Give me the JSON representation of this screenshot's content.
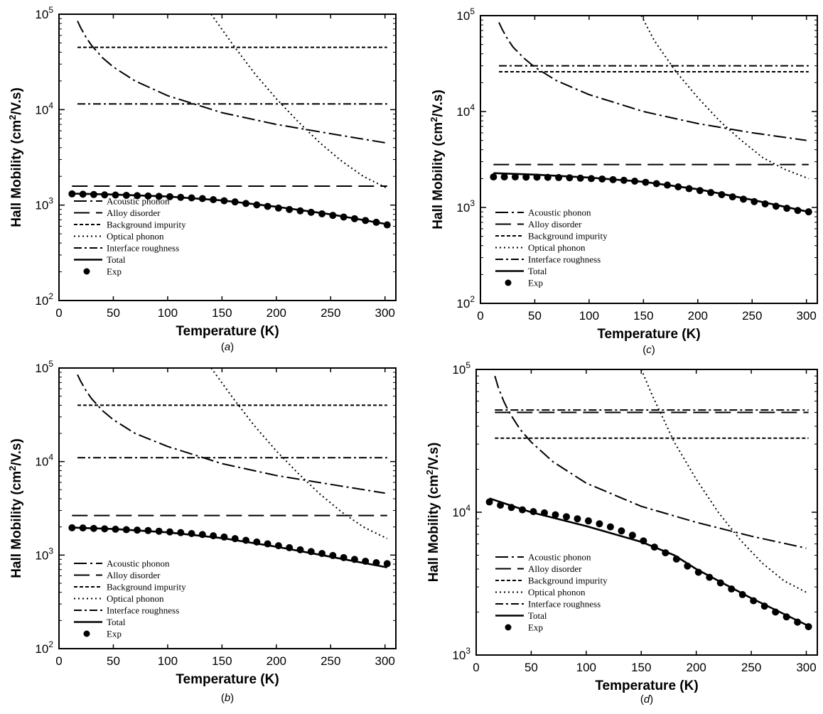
{
  "chart_data": [
    {
      "panel": "a",
      "type": "line",
      "xlabel": "Temperature (K)",
      "ylabel": "Hall Mobility (cm²/V.s)",
      "xlim": [
        0,
        310
      ],
      "ylim": [
        100,
        100000
      ],
      "yscale": "log",
      "xticks": [
        0,
        50,
        100,
        150,
        200,
        250,
        300
      ],
      "ytick_exponents": [
        2,
        3,
        4,
        5
      ],
      "legend_position": "lower-left",
      "series": [
        {
          "name": "Acoustic phonon",
          "style": "dashdot-long",
          "x": [
            17,
            20,
            25,
            30,
            40,
            50,
            70,
            100,
            150,
            200,
            250,
            300
          ],
          "y": [
            85000,
            72000,
            57000,
            47000,
            35000,
            28000,
            20000,
            14000,
            9300,
            7000,
            5600,
            4500
          ]
        },
        {
          "name": "Alloy disorder",
          "style": "dash-long",
          "x": [
            12,
            302
          ],
          "y": [
            1580,
            1580
          ]
        },
        {
          "name": "Background impurity",
          "style": "dash-short",
          "x": [
            17,
            302
          ],
          "y": [
            45000,
            45000
          ]
        },
        {
          "name": "Optical phonon",
          "style": "dotted",
          "x": [
            140,
            160,
            180,
            200,
            220,
            240,
            260,
            280,
            302
          ],
          "y": [
            100000,
            48000,
            24000,
            13000,
            7500,
            4500,
            2900,
            2000,
            1500
          ]
        },
        {
          "name": "Interface roughness",
          "style": "dashdot-medium",
          "x": [
            17,
            302
          ],
          "y": [
            11500,
            11500
          ]
        },
        {
          "name": "Total",
          "style": "solid",
          "x": [
            12,
            50,
            100,
            150,
            200,
            250,
            302
          ],
          "y": [
            1320,
            1290,
            1230,
            1120,
            960,
            800,
            630
          ]
        },
        {
          "name": "Exp",
          "style": "markers",
          "x": [
            12,
            22,
            32,
            42,
            52,
            62,
            72,
            82,
            92,
            102,
            112,
            122,
            132,
            142,
            152,
            162,
            172,
            182,
            192,
            202,
            212,
            222,
            232,
            242,
            252,
            262,
            272,
            282,
            292,
            302
          ],
          "y": [
            1310,
            1300,
            1290,
            1280,
            1275,
            1265,
            1255,
            1245,
            1235,
            1225,
            1205,
            1190,
            1170,
            1140,
            1110,
            1080,
            1040,
            1005,
            970,
            930,
            900,
            870,
            840,
            810,
            780,
            750,
            720,
            690,
            660,
            620
          ]
        }
      ]
    },
    {
      "panel": "c",
      "type": "line",
      "xlabel": "Temperature (K)",
      "ylabel": "Hall Mobility (cm²/V.s)",
      "xlim": [
        0,
        310
      ],
      "ylim": [
        100,
        100000
      ],
      "yscale": "log",
      "xticks": [
        0,
        50,
        100,
        150,
        200,
        250,
        300
      ],
      "ytick_exponents": [
        2,
        3,
        4,
        5
      ],
      "legend_position": "lower-left",
      "series": [
        {
          "name": "Acoustic phonon",
          "style": "dashdot-long",
          "x": [
            17,
            20,
            25,
            30,
            40,
            50,
            70,
            100,
            150,
            200,
            250,
            300
          ],
          "y": [
            85000,
            72000,
            57000,
            47000,
            36000,
            29000,
            21000,
            15000,
            10000,
            7500,
            6000,
            5000
          ]
        },
        {
          "name": "Alloy disorder",
          "style": "dash-long",
          "x": [
            12,
            302
          ],
          "y": [
            2800,
            2800
          ]
        },
        {
          "name": "Background impurity",
          "style": "dash-short",
          "x": [
            17,
            302
          ],
          "y": [
            26000,
            26000
          ]
        },
        {
          "name": "Optical phonon",
          "style": "dotted",
          "x": [
            148,
            160,
            180,
            200,
            220,
            240,
            260,
            280,
            302
          ],
          "y": [
            100000,
            55000,
            26000,
            14000,
            8000,
            5000,
            3300,
            2500,
            2000
          ]
        },
        {
          "name": "Interface roughness",
          "style": "dashdot-medium",
          "x": [
            17,
            302
          ],
          "y": [
            30000,
            30000
          ]
        },
        {
          "name": "Total",
          "style": "solid",
          "x": [
            12,
            50,
            100,
            150,
            200,
            250,
            302
          ],
          "y": [
            2280,
            2200,
            2050,
            1850,
            1550,
            1200,
            900
          ]
        },
        {
          "name": "Exp",
          "style": "markers",
          "x": [
            12,
            22,
            32,
            42,
            52,
            62,
            72,
            82,
            92,
            102,
            112,
            122,
            132,
            142,
            152,
            162,
            172,
            182,
            192,
            202,
            212,
            222,
            232,
            242,
            252,
            262,
            272,
            282,
            292,
            302
          ],
          "y": [
            2080,
            2080,
            2080,
            2070,
            2070,
            2060,
            2050,
            2040,
            2020,
            2000,
            1980,
            1950,
            1920,
            1880,
            1830,
            1770,
            1710,
            1640,
            1570,
            1500,
            1430,
            1360,
            1290,
            1220,
            1150,
            1090,
            1030,
            980,
            930,
            900
          ]
        }
      ]
    },
    {
      "panel": "b",
      "type": "line",
      "xlabel": "Temperature (K)",
      "ylabel": "Hall Mobility (cm²/V.s)",
      "xlim": [
        0,
        310
      ],
      "ylim": [
        100,
        100000
      ],
      "yscale": "log",
      "xticks": [
        0,
        50,
        100,
        150,
        200,
        250,
        300
      ],
      "ytick_exponents": [
        2,
        3,
        4,
        5
      ],
      "legend_position": "lower-left",
      "series": [
        {
          "name": "Acoustic phonon",
          "style": "dashdot-long",
          "x": [
            17,
            20,
            25,
            30,
            40,
            50,
            70,
            100,
            150,
            200,
            250,
            300
          ],
          "y": [
            85000,
            72000,
            57000,
            47000,
            35000,
            28000,
            20000,
            14500,
            9500,
            7100,
            5700,
            4600
          ]
        },
        {
          "name": "Alloy disorder",
          "style": "dash-long",
          "x": [
            12,
            302
          ],
          "y": [
            2650,
            2650
          ]
        },
        {
          "name": "Background impurity",
          "style": "dash-short",
          "x": [
            17,
            302
          ],
          "y": [
            40000,
            40000
          ]
        },
        {
          "name": "Optical phonon",
          "style": "dotted",
          "x": [
            140,
            160,
            180,
            200,
            220,
            240,
            260,
            280,
            302
          ],
          "y": [
            100000,
            48000,
            24000,
            13000,
            7500,
            4500,
            2900,
            2000,
            1500
          ]
        },
        {
          "name": "Interface roughness",
          "style": "dashdot-medium",
          "x": [
            17,
            302
          ],
          "y": [
            11000,
            11000
          ]
        },
        {
          "name": "Total",
          "style": "solid",
          "x": [
            12,
            50,
            100,
            150,
            200,
            250,
            302
          ],
          "y": [
            1970,
            1900,
            1750,
            1520,
            1230,
            960,
            740
          ]
        },
        {
          "name": "Exp",
          "style": "markers",
          "x": [
            12,
            22,
            32,
            42,
            52,
            62,
            72,
            82,
            92,
            102,
            112,
            122,
            132,
            142,
            152,
            162,
            172,
            182,
            192,
            202,
            212,
            222,
            232,
            242,
            252,
            262,
            272,
            282,
            292,
            302
          ],
          "y": [
            1960,
            1950,
            1930,
            1910,
            1890,
            1870,
            1850,
            1830,
            1800,
            1770,
            1740,
            1700,
            1660,
            1610,
            1560,
            1500,
            1440,
            1380,
            1320,
            1260,
            1200,
            1140,
            1090,
            1040,
            990,
            940,
            900,
            860,
            830,
            810
          ]
        }
      ]
    },
    {
      "panel": "d",
      "type": "line",
      "xlabel": "Temperature (K)",
      "ylabel": "Hall Mobility (cm²/V.s)",
      "xlim": [
        0,
        310
      ],
      "ylim": [
        1000,
        100000
      ],
      "yscale": "log",
      "xticks": [
        0,
        50,
        100,
        150,
        200,
        250,
        300
      ],
      "ytick_exponents": [
        3,
        4,
        5
      ],
      "legend_position": "lower-left",
      "series": [
        {
          "name": "Acoustic phonon",
          "style": "dashdot-long",
          "x": [
            17,
            20,
            25,
            30,
            40,
            50,
            70,
            100,
            150,
            200,
            250,
            300
          ],
          "y": [
            90000,
            75000,
            60000,
            50000,
            38000,
            31000,
            22500,
            16000,
            11000,
            8500,
            6800,
            5600
          ]
        },
        {
          "name": "Alloy disorder",
          "style": "dash-long",
          "x": [
            17,
            302
          ],
          "y": [
            50000,
            50000
          ]
        },
        {
          "name": "Background impurity",
          "style": "dash-short",
          "x": [
            17,
            302
          ],
          "y": [
            33000,
            33000
          ]
        },
        {
          "name": "Optical phonon",
          "style": "dotted",
          "x": [
            150,
            160,
            180,
            200,
            220,
            240,
            260,
            280,
            302
          ],
          "y": [
            100000,
            66000,
            31000,
            17000,
            10000,
            6400,
            4400,
            3300,
            2700
          ]
        },
        {
          "name": "Interface roughness",
          "style": "dashdot-medium",
          "x": [
            17,
            302
          ],
          "y": [
            52000,
            52000
          ]
        },
        {
          "name": "Total",
          "style": "solid",
          "x": [
            12,
            50,
            100,
            150,
            180,
            200,
            250,
            302
          ],
          "y": [
            12500,
            10000,
            8000,
            6200,
            5000,
            4000,
            2500,
            1600
          ]
        },
        {
          "name": "Exp",
          "style": "markers",
          "x": [
            12,
            22,
            32,
            42,
            52,
            62,
            72,
            82,
            92,
            102,
            112,
            122,
            132,
            142,
            152,
            162,
            172,
            182,
            192,
            202,
            212,
            222,
            232,
            242,
            252,
            262,
            272,
            282,
            292,
            302
          ],
          "y": [
            11800,
            11200,
            10800,
            10400,
            10100,
            9900,
            9600,
            9300,
            9000,
            8700,
            8300,
            7900,
            7400,
            6900,
            6300,
            5700,
            5200,
            4700,
            4200,
            3800,
            3500,
            3200,
            2900,
            2650,
            2400,
            2200,
            2000,
            1850,
            1700,
            1580
          ]
        }
      ]
    }
  ]
}
